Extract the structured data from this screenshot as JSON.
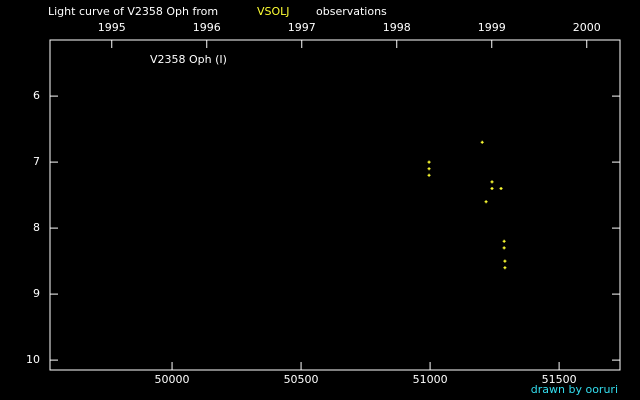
{
  "chart_data": {
    "type": "scatter",
    "title": "Light curve of V2358 Oph from",
    "title_source": "VSOLJ",
    "title_suffix": "observations",
    "annotation": "V2358 Oph (I)",
    "credit": "drawn by ooruri",
    "x": [
      50996,
      50996,
      50996,
      51202,
      51240,
      51240,
      51217,
      51275,
      51287,
      51287,
      51290,
      51290
    ],
    "values": [
      7.0,
      7.1,
      7.2,
      6.7,
      7.3,
      7.4,
      7.6,
      7.4,
      8.2,
      8.3,
      8.5,
      8.6
    ],
    "color": "#ffff33",
    "xlim": [
      49527,
      51736
    ],
    "xticks": [
      50000,
      50500,
      51000,
      51500
    ],
    "x2lim": [
      1994.35,
      2000.35
    ],
    "x2ticks": [
      1995,
      1996,
      1997,
      1998,
      1999,
      2000
    ],
    "ylim": [
      10.15,
      5.15
    ],
    "yticks": [
      6,
      7,
      8,
      9,
      10
    ]
  }
}
